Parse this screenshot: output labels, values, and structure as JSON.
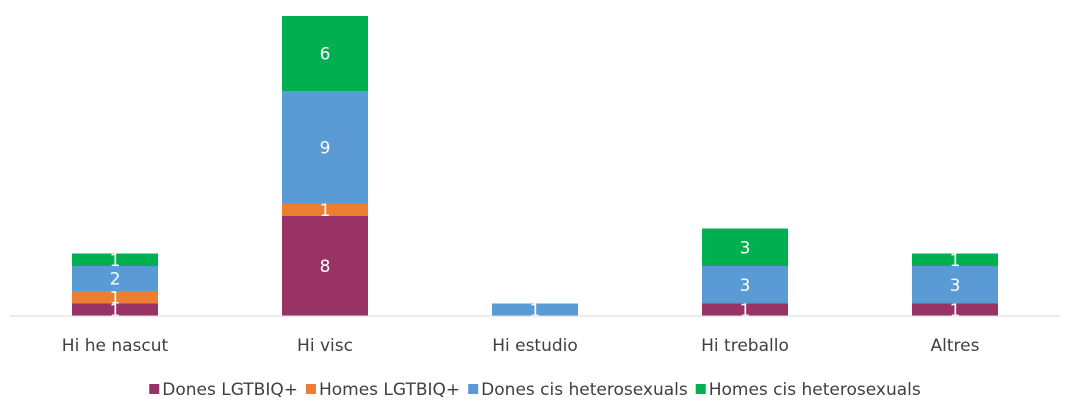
{
  "chart_data": {
    "type": "stacked_bar",
    "categories": [
      "Hi he nascut",
      "Hi visc",
      "Hi estudio",
      "Hi treballo",
      "Altres"
    ],
    "series": [
      {
        "name": "Dones LGTBIQ+",
        "color": "#993366",
        "values": [
          1,
          8,
          0,
          1,
          1
        ]
      },
      {
        "name": "Homes LGTBIQ+",
        "color": "#ed7d31",
        "values": [
          1,
          1,
          0,
          0,
          0
        ]
      },
      {
        "name": "Dones cis heterosexuals",
        "color": "#5b9bd5",
        "values": [
          2,
          9,
          1,
          3,
          3
        ]
      },
      {
        "name": "Homes cis heterosexuals",
        "color": "#00b050",
        "values": [
          1,
          6,
          0,
          3,
          1
        ]
      }
    ],
    "ylim": [
      0,
      24
    ],
    "legend": "bottom"
  }
}
